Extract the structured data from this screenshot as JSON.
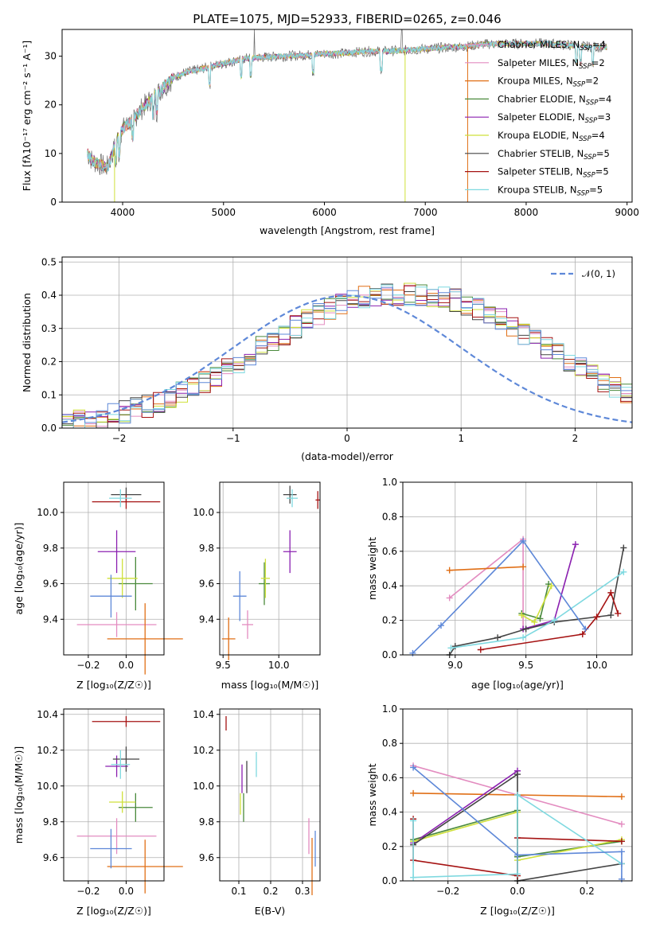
{
  "title": "PLATE=1075, MJD=52933, FIBERID=0265, z=0.046",
  "colors": [
    "#e38cc0",
    "#e06f16",
    "#4a8a3c",
    "#8b20b0",
    "#cfe03a",
    "#444444",
    "#a51212",
    "#7fd9e0",
    "#5e88d8"
  ],
  "chart_data": [
    {
      "id": "spectrum",
      "type": "line",
      "xlabel": "wavelength [Angstrom, rest frame]",
      "ylabel": "Flux [fλ10⁻¹⁷ erg cm⁻² s⁻¹ A⁻¹]",
      "xlim": [
        3400,
        9050
      ],
      "ylim": [
        0,
        35.5
      ],
      "xticks": [
        "4000",
        "5000",
        "6000",
        "7000",
        "8000",
        "9000"
      ],
      "yticks": [
        "0",
        "10",
        "20",
        "30"
      ],
      "continuum": {
        "x": [
          3650,
          3700,
          3800,
          3850,
          3900,
          3950,
          4000,
          4050,
          4100,
          4200,
          4300,
          4400,
          4500,
          4600,
          4700,
          4800,
          5000,
          5200,
          5400,
          5600,
          5800,
          6000,
          6200,
          6400,
          6600,
          6800,
          7000,
          7200,
          7400,
          7600,
          8000,
          8200,
          8400,
          8600,
          8800
        ],
        "y": [
          10,
          8.5,
          7.5,
          7.2,
          10,
          13,
          15,
          16,
          17,
          19.5,
          21.5,
          23.5,
          25.5,
          26.5,
          27,
          27.5,
          28.5,
          29.5,
          29.8,
          30,
          30.2,
          30.5,
          30.6,
          31,
          31,
          31.2,
          31.5,
          31.8,
          32,
          32.5,
          32.6,
          32.6,
          32.3,
          32,
          31.8
        ]
      },
      "legend": [
        {
          "label": "Chabrier MILES, N",
          "sub": "SSP",
          "tail": "=4",
          "color": "#e38cc0"
        },
        {
          "label": "Salpeter MILES, N",
          "sub": "SSP",
          "tail": "=2",
          "color": "#e38cc0"
        },
        {
          "label": "Kroupa MILES, N",
          "sub": "SSP",
          "tail": "=2",
          "color": "#e06f16"
        },
        {
          "label": "Chabrier ELODIE, N",
          "sub": "SSP",
          "tail": "=4",
          "color": "#4a8a3c"
        },
        {
          "label": "Salpeter ELODIE, N",
          "sub": "SSP",
          "tail": "=3",
          "color": "#8b20b0"
        },
        {
          "label": "Kroupa ELODIE, N",
          "sub": "SSP",
          "tail": "=4",
          "color": "#cfe03a"
        },
        {
          "label": "Chabrier STELIB, N",
          "sub": "SSP",
          "tail": "=5",
          "color": "#444444"
        },
        {
          "label": "Salpeter STELIB, N",
          "sub": "SSP",
          "tail": "=5",
          "color": "#a51212"
        },
        {
          "label": "Kroupa STELIB, N",
          "sub": "SSP",
          "tail": "=5",
          "color": "#7fd9e0"
        }
      ],
      "drop_lines": [
        {
          "x": 3920,
          "color": "#cfe03a"
        },
        {
          "x": 6800,
          "color": "#cfe03a"
        },
        {
          "x": 7420,
          "color": "#e06f16"
        }
      ]
    },
    {
      "id": "residuals",
      "type": "histogram",
      "xlabel": "(data-model)/error",
      "ylabel": "Normed distribution",
      "xlim": [
        -2.5,
        2.5
      ],
      "ylim": [
        0,
        0.515
      ],
      "xticks": [
        "−2",
        "−1",
        "0",
        "1",
        "2"
      ],
      "yticks": [
        "0.0",
        "0.1",
        "0.2",
        "0.3",
        "0.4",
        "0.5"
      ],
      "legend": "𝒩(0, 1)",
      "bin_width": 0.1,
      "base": [
        0.018,
        0.022,
        0.027,
        0.033,
        0.04,
        0.048,
        0.057,
        0.067,
        0.079,
        0.092,
        0.106,
        0.122,
        0.139,
        0.158,
        0.178,
        0.198,
        0.22,
        0.242,
        0.264,
        0.285,
        0.306,
        0.326,
        0.344,
        0.36,
        0.374,
        0.385,
        0.394,
        0.4,
        0.403,
        0.403,
        0.403,
        0.403,
        0.4,
        0.394,
        0.385,
        0.374,
        0.36,
        0.344,
        0.326,
        0.306,
        0.285,
        0.264,
        0.242,
        0.22,
        0.198,
        0.178,
        0.158,
        0.139,
        0.122,
        0.106
      ],
      "series_colors": [
        "#e38cc0",
        "#e06f16",
        "#4a8a3c",
        "#8b20b0",
        "#cfe03a",
        "#444444",
        "#a51212",
        "#7fd9e0",
        "#5e88d8"
      ]
    },
    {
      "id": "age-vs-Z",
      "type": "scatter",
      "xlabel": "Z [log₁₀(Z/Z☉)]",
      "ylabel": "age  [log₁₀(age/yr)]",
      "xlim": [
        -0.33,
        0.2
      ],
      "ylim": [
        9.2,
        10.17
      ],
      "xticks": [
        {
          "v": -0.2,
          "t": "−0.2"
        },
        {
          "v": 0.0,
          "t": "0.0"
        }
      ],
      "yticks": [
        {
          "v": 9.4,
          "t": "9.4"
        },
        {
          "v": 9.6,
          "t": "9.6"
        },
        {
          "v": 9.8,
          "t": "9.8"
        },
        {
          "v": 10.0,
          "t": "10.0"
        }
      ],
      "points": [
        {
          "x": -0.05,
          "y": 9.37,
          "xerr": 0.21,
          "yerr": 0.07,
          "color": "#e38cc0"
        },
        {
          "x": 0.1,
          "y": 9.29,
          "xerr": 0.2,
          "yerr": 0.2,
          "color": "#e06f16"
        },
        {
          "x": 0.05,
          "y": 9.6,
          "xerr": 0.09,
          "yerr": 0.15,
          "color": "#4a8a3c"
        },
        {
          "x": -0.05,
          "y": 9.78,
          "xerr": 0.1,
          "yerr": 0.12,
          "color": "#8b20b0"
        },
        {
          "x": -0.02,
          "y": 9.63,
          "xerr": 0.08,
          "yerr": 0.11,
          "color": "#cfe03a"
        },
        {
          "x": 0.0,
          "y": 10.1,
          "xerr": 0.08,
          "yerr": 0.04,
          "color": "#444444"
        },
        {
          "x": 0.0,
          "y": 10.06,
          "xerr": 0.18,
          "yerr": 0.04,
          "color": "#a51212"
        },
        {
          "x": -0.03,
          "y": 10.08,
          "xerr": 0.06,
          "yerr": 0.05,
          "color": "#7fd9e0"
        },
        {
          "x": -0.08,
          "y": 9.53,
          "xerr": 0.11,
          "yerr": 0.12,
          "color": "#5e88d8"
        }
      ]
    },
    {
      "id": "age-vs-mass",
      "type": "scatter",
      "xlabel": "mass [log₁₀(M/M☉)]",
      "ylabel": "",
      "xlim": [
        9.47,
        10.37
      ],
      "ylim": [
        9.2,
        10.17
      ],
      "xticks": [
        {
          "v": 9.5,
          "t": "9.5"
        },
        {
          "v": 10.0,
          "t": "10.0"
        }
      ],
      "yticks": [
        {
          "v": 9.4,
          "t": "9.4"
        },
        {
          "v": 9.6,
          "t": "9.6"
        },
        {
          "v": 9.8,
          "t": "9.8"
        },
        {
          "v": 10.0,
          "t": "10.0"
        }
      ],
      "points": [
        {
          "x": 9.72,
          "y": 9.37,
          "xerr": 0.05,
          "yerr": 0.08,
          "color": "#e38cc0"
        },
        {
          "x": 9.55,
          "y": 9.29,
          "xerr": 0.06,
          "yerr": 0.12,
          "color": "#e06f16"
        },
        {
          "x": 9.87,
          "y": 9.6,
          "xerr": 0.05,
          "yerr": 0.12,
          "color": "#4a8a3c"
        },
        {
          "x": 10.1,
          "y": 9.78,
          "xerr": 0.06,
          "yerr": 0.12,
          "color": "#8b20b0"
        },
        {
          "x": 9.88,
          "y": 9.63,
          "xerr": 0.04,
          "yerr": 0.11,
          "color": "#cfe03a"
        },
        {
          "x": 10.1,
          "y": 10.1,
          "xerr": 0.06,
          "yerr": 0.05,
          "color": "#444444"
        },
        {
          "x": 10.35,
          "y": 10.07,
          "xerr": 0.02,
          "yerr": 0.05,
          "color": "#a51212"
        },
        {
          "x": 10.12,
          "y": 10.08,
          "xerr": 0.05,
          "yerr": 0.05,
          "color": "#7fd9e0"
        },
        {
          "x": 9.65,
          "y": 9.53,
          "xerr": 0.06,
          "yerr": 0.14,
          "color": "#5e88d8"
        }
      ]
    },
    {
      "id": "weight-vs-age",
      "type": "line",
      "xlabel": "age  [log₁₀(age/yr)]",
      "ylabel": "mass weight",
      "xlim": [
        8.63,
        10.25
      ],
      "ylim": [
        0,
        1
      ],
      "xticks": [
        {
          "v": 9.0,
          "t": "9.0"
        },
        {
          "v": 9.5,
          "t": "9.5"
        },
        {
          "v": 10.0,
          "t": "10.0"
        }
      ],
      "yticks": [
        {
          "v": 0,
          "t": "0.0"
        },
        {
          "v": 0.2,
          "t": "0.2"
        },
        {
          "v": 0.4,
          "t": "0.4"
        },
        {
          "v": 0.6,
          "t": "0.6"
        },
        {
          "v": 0.8,
          "t": "0.8"
        },
        {
          "v": 1.0,
          "t": "1.0"
        }
      ],
      "series": [
        {
          "color": "#e38cc0",
          "x": [
            8.96,
            9.48,
            9.48
          ],
          "y": [
            0.33,
            0.67,
            0.15
          ]
        },
        {
          "color": "#e06f16",
          "x": [
            8.96,
            9.48
          ],
          "y": [
            0.49,
            0.51
          ]
        },
        {
          "color": "#4a8a3c",
          "x": [
            9.47,
            9.6,
            9.66
          ],
          "y": [
            0.24,
            0.21,
            0.41
          ]
        },
        {
          "color": "#8b20b0",
          "x": [
            9.48,
            9.7,
            9.85
          ],
          "y": [
            0.15,
            0.2,
            0.64
          ]
        },
        {
          "color": "#cfe03a",
          "x": [
            9.47,
            9.56,
            9.68
          ],
          "y": [
            0.23,
            0.19,
            0.4
          ]
        },
        {
          "color": "#444444",
          "x": [
            8.96,
            9.0,
            9.3,
            9.5,
            9.7,
            10.1,
            10.19
          ],
          "y": [
            0.0,
            0.05,
            0.1,
            0.15,
            0.19,
            0.23,
            0.62
          ]
        },
        {
          "color": "#a51212",
          "x": [
            9.18,
            9.9,
            10.0,
            10.1,
            10.15
          ],
          "y": [
            0.03,
            0.12,
            0.22,
            0.36,
            0.24
          ]
        },
        {
          "color": "#7fd9e0",
          "x": [
            8.97,
            9.48,
            9.7,
            10.19
          ],
          "y": [
            0.04,
            0.1,
            0.2,
            0.48
          ]
        },
        {
          "color": "#5e88d8",
          "x": [
            8.7,
            8.9,
            9.48,
            9.92
          ],
          "y": [
            0.01,
            0.17,
            0.66,
            0.15
          ]
        }
      ]
    },
    {
      "id": "mass-vs-Z",
      "type": "scatter",
      "xlabel": "Z [log₁₀(Z/Z☉)]",
      "ylabel": "mass [log₁₀(M/M☉)]",
      "xlim": [
        -0.33,
        0.2
      ],
      "ylim": [
        9.47,
        10.43
      ],
      "xticks": [
        {
          "v": -0.2,
          "t": "−0.2"
        },
        {
          "v": 0.0,
          "t": "0.0"
        }
      ],
      "yticks": [
        {
          "v": 9.6,
          "t": "9.6"
        },
        {
          "v": 9.8,
          "t": "9.8"
        },
        {
          "v": 10.0,
          "t": "10.0"
        },
        {
          "v": 10.2,
          "t": "10.2"
        },
        {
          "v": 10.4,
          "t": "10.4"
        }
      ],
      "points": [
        {
          "x": -0.05,
          "y": 9.72,
          "xerr": 0.21,
          "yerr": 0.1,
          "color": "#e38cc0"
        },
        {
          "x": 0.1,
          "y": 9.55,
          "xerr": 0.2,
          "yerr": 0.15,
          "color": "#e06f16"
        },
        {
          "x": 0.05,
          "y": 9.88,
          "xerr": 0.09,
          "yerr": 0.08,
          "color": "#4a8a3c"
        },
        {
          "x": -0.05,
          "y": 10.11,
          "xerr": 0.06,
          "yerr": 0.06,
          "color": "#8b20b0"
        },
        {
          "x": -0.02,
          "y": 9.91,
          "xerr": 0.07,
          "yerr": 0.06,
          "color": "#cfe03a"
        },
        {
          "x": 0.0,
          "y": 10.15,
          "xerr": 0.07,
          "yerr": 0.07,
          "color": "#444444"
        },
        {
          "x": 0.0,
          "y": 10.36,
          "xerr": 0.18,
          "yerr": 0.03,
          "color": "#a51212"
        },
        {
          "x": -0.03,
          "y": 10.12,
          "xerr": 0.05,
          "yerr": 0.08,
          "color": "#7fd9e0"
        },
        {
          "x": -0.08,
          "y": 9.65,
          "xerr": 0.11,
          "yerr": 0.11,
          "color": "#5e88d8"
        }
      ]
    },
    {
      "id": "mass-vs-ebv",
      "type": "scatter",
      "xlabel": "E(B-V)",
      "ylabel": "",
      "xlim": [
        0.04,
        0.355
      ],
      "ylim": [
        9.47,
        10.43
      ],
      "xticks": [
        {
          "v": 0.1,
          "t": "0.1"
        },
        {
          "v": 0.2,
          "t": "0.2"
        },
        {
          "v": 0.3,
          "t": "0.3"
        }
      ],
      "yticks": [
        {
          "v": 9.6,
          "t": "9.6"
        },
        {
          "v": 9.8,
          "t": "9.8"
        },
        {
          "v": 10.0,
          "t": "10.0"
        },
        {
          "v": 10.2,
          "t": "10.2"
        },
        {
          "v": 10.4,
          "t": "10.4"
        }
      ],
      "points": [
        {
          "x": 0.32,
          "y": 9.72,
          "xerr": 0,
          "yerr": 0.1,
          "color": "#e38cc0"
        },
        {
          "x": 0.33,
          "y": 9.55,
          "xerr": 0,
          "yerr": 0.16,
          "color": "#e06f16"
        },
        {
          "x": 0.115,
          "y": 9.88,
          "xerr": 0,
          "yerr": 0.08,
          "color": "#4a8a3c"
        },
        {
          "x": 0.11,
          "y": 10.04,
          "xerr": 0,
          "yerr": 0.08,
          "color": "#8b20b0"
        },
        {
          "x": 0.105,
          "y": 9.9,
          "xerr": 0,
          "yerr": 0.06,
          "color": "#cfe03a"
        },
        {
          "x": 0.125,
          "y": 10.05,
          "xerr": 0,
          "yerr": 0.09,
          "color": "#444444"
        },
        {
          "x": 0.06,
          "y": 10.35,
          "xerr": 0,
          "yerr": 0.04,
          "color": "#a51212"
        },
        {
          "x": 0.155,
          "y": 10.12,
          "xerr": 0,
          "yerr": 0.07,
          "color": "#7fd9e0"
        },
        {
          "x": 0.34,
          "y": 9.65,
          "xerr": 0,
          "yerr": 0.1,
          "color": "#5e88d8"
        }
      ]
    },
    {
      "id": "weight-vs-Z",
      "type": "line",
      "xlabel": "Z [log₁₀(Z/Z☉)]",
      "ylabel": "mass weight",
      "xlim": [
        -0.33,
        0.33
      ],
      "ylim": [
        0,
        1
      ],
      "xticks": [
        {
          "v": -0.2,
          "t": "−0.2"
        },
        {
          "v": 0.0,
          "t": "0.0"
        },
        {
          "v": 0.2,
          "t": "0.2"
        }
      ],
      "yticks": [
        {
          "v": 0,
          "t": "0.0"
        },
        {
          "v": 0.2,
          "t": "0.2"
        },
        {
          "v": 0.4,
          "t": "0.4"
        },
        {
          "v": 0.6,
          "t": "0.6"
        },
        {
          "v": 0.8,
          "t": "0.8"
        },
        {
          "v": 1.0,
          "t": "1.0"
        }
      ],
      "series": [
        {
          "color": "#e38cc0",
          "x": [
            -0.3,
            0.0,
            0.3
          ],
          "y": [
            0.67,
            0.5,
            0.33
          ]
        },
        {
          "color": "#e06f16",
          "x": [
            -0.3,
            0.3
          ],
          "y": [
            0.51,
            0.49
          ]
        },
        {
          "color": "#4a8a3c",
          "x": [
            -0.3,
            0.0,
            0.0,
            0.3
          ],
          "y": [
            0.24,
            0.41,
            0.14,
            0.23
          ]
        },
        {
          "color": "#8b20b0",
          "x": [
            -0.3,
            0.0
          ],
          "y": [
            0.22,
            0.64
          ]
        },
        {
          "color": "#cfe03a",
          "x": [
            -0.3,
            0.0,
            0.0,
            0.3
          ],
          "y": [
            0.23,
            0.4,
            0.12,
            0.24
          ]
        },
        {
          "color": "#444444",
          "x": [
            -0.3,
            0.0,
            0.0,
            0.3
          ],
          "y": [
            0.21,
            0.62,
            0.0,
            0.1
          ]
        },
        {
          "color": "#a51212",
          "x": [
            -0.3,
            -0.3,
            0.0,
            0.0,
            0.3
          ],
          "y": [
            0.36,
            0.12,
            0.03,
            0.25,
            0.23
          ]
        },
        {
          "color": "#7fd9e0",
          "x": [
            -0.3,
            -0.3,
            0.0,
            0.0,
            0.3
          ],
          "y": [
            0.35,
            0.02,
            0.04,
            0.5,
            0.1
          ]
        },
        {
          "color": "#5e88d8",
          "x": [
            -0.3,
            0.0,
            0.3,
            0.3
          ],
          "y": [
            0.66,
            0.15,
            0.17,
            0.01
          ]
        }
      ]
    }
  ]
}
